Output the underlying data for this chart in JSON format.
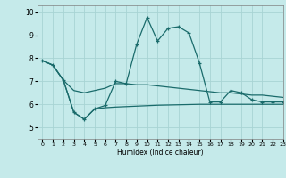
{
  "xlabel": "Humidex (Indice chaleur)",
  "xlim": [
    -0.5,
    23
  ],
  "ylim": [
    4.5,
    10.3
  ],
  "yticks": [
    5,
    6,
    7,
    8,
    9,
    10
  ],
  "xticks": [
    0,
    1,
    2,
    3,
    4,
    5,
    6,
    7,
    8,
    9,
    10,
    11,
    12,
    13,
    14,
    15,
    16,
    17,
    18,
    19,
    20,
    21,
    22,
    23
  ],
  "bg_color": "#c5eaea",
  "grid_color": "#a8d4d4",
  "line_color": "#1a6b6b",
  "line1_x": [
    0,
    1,
    2,
    3,
    4,
    5,
    6,
    7,
    8,
    9,
    10,
    11,
    12,
    13,
    14,
    15,
    16,
    17,
    18,
    19,
    20,
    21,
    22,
    23
  ],
  "line1_y": [
    7.9,
    7.7,
    7.05,
    5.65,
    5.35,
    5.8,
    5.95,
    7.0,
    6.9,
    8.6,
    9.77,
    8.75,
    9.3,
    9.37,
    9.1,
    7.8,
    6.1,
    6.1,
    6.6,
    6.5,
    6.2,
    6.1,
    6.1,
    6.1
  ],
  "line2_x": [
    0,
    1,
    2,
    3,
    4,
    5,
    6,
    7,
    8,
    9,
    10,
    11,
    12,
    13,
    14,
    15,
    16,
    17,
    18,
    19,
    20,
    21,
    22,
    23
  ],
  "line2_y": [
    7.9,
    7.7,
    7.05,
    6.6,
    6.5,
    6.6,
    6.7,
    6.9,
    6.9,
    6.85,
    6.85,
    6.8,
    6.75,
    6.7,
    6.65,
    6.6,
    6.55,
    6.5,
    6.5,
    6.45,
    6.4,
    6.4,
    6.35,
    6.3
  ],
  "line3_x": [
    0,
    1,
    2,
    3,
    4,
    5,
    6,
    7,
    8,
    9,
    10,
    11,
    12,
    13,
    14,
    15,
    16,
    17,
    18,
    19,
    20,
    21,
    22,
    23
  ],
  "line3_y": [
    7.9,
    7.7,
    7.05,
    5.65,
    5.35,
    5.8,
    5.85,
    5.88,
    5.9,
    5.92,
    5.94,
    5.96,
    5.97,
    5.98,
    5.99,
    6.0,
    6.0,
    6.0,
    6.0,
    6.0,
    6.0,
    6.0,
    6.0,
    6.0
  ]
}
